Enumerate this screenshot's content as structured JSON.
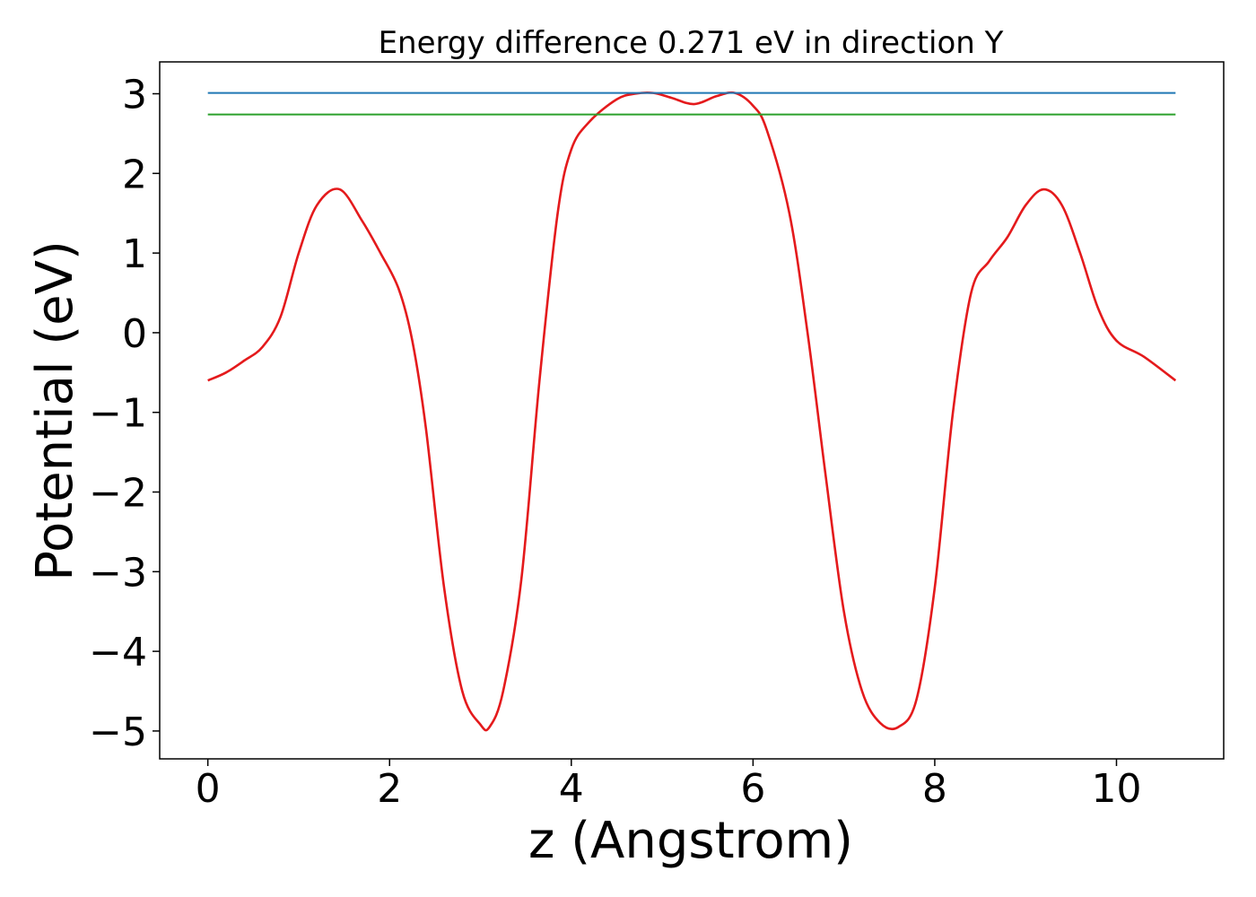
{
  "chart_data": {
    "type": "line",
    "title": "Energy difference 0.271 eV in direction Y",
    "xlabel": "z (Angstrom)",
    "ylabel": "Potential (eV)",
    "xlim": [
      -0.53,
      11.18
    ],
    "ylim": [
      -5.35,
      3.4
    ],
    "xticks": [
      0,
      2,
      4,
      6,
      8,
      10
    ],
    "yticks": [
      -5,
      -4,
      -3,
      -2,
      -1,
      0,
      1,
      2,
      3
    ],
    "xtick_labels": [
      "0",
      "2",
      "4",
      "6",
      "8",
      "10"
    ],
    "ytick_labels": [
      "−5",
      "−4",
      "−3",
      "−2",
      "−1",
      "0",
      "1",
      "2",
      "3"
    ],
    "grid": false,
    "series": [
      {
        "color": "#e41a1c",
        "x": [
          0,
          0.2,
          0.4,
          0.6,
          0.8,
          1.0,
          1.2,
          1.45,
          1.7,
          1.9,
          2.1,
          2.25,
          2.4,
          2.6,
          2.8,
          3.0,
          3.1,
          3.25,
          3.45,
          3.65,
          3.85,
          4.0,
          4.2,
          4.5,
          4.7,
          4.9,
          5.1,
          5.35,
          5.6,
          5.8,
          6.0,
          6.15,
          6.4,
          6.6,
          6.8,
          7.0,
          7.2,
          7.4,
          7.6,
          7.8,
          8.0,
          8.2,
          8.4,
          8.6,
          8.8,
          9.0,
          9.2,
          9.4,
          9.6,
          9.8,
          10.0,
          10.3,
          10.65
        ],
        "y": [
          -0.6,
          -0.5,
          -0.35,
          -0.18,
          0.2,
          1.0,
          1.6,
          1.8,
          1.4,
          1.0,
          0.55,
          -0.1,
          -1.2,
          -3.2,
          -4.5,
          -4.92,
          -4.95,
          -4.5,
          -3.1,
          -0.6,
          1.5,
          2.3,
          2.65,
          2.93,
          3.0,
          3.01,
          2.95,
          2.87,
          2.97,
          3.01,
          2.85,
          2.55,
          1.5,
          0.0,
          -1.8,
          -3.5,
          -4.5,
          -4.9,
          -4.95,
          -4.6,
          -3.2,
          -1.0,
          0.5,
          0.9,
          1.2,
          1.6,
          1.8,
          1.6,
          1.0,
          0.3,
          -0.1,
          -0.3,
          -0.6
        ]
      },
      {
        "color": "#1f77b4",
        "x": [
          0,
          10.65
        ],
        "y": [
          3.01,
          3.01
        ]
      },
      {
        "color": "#2ca02c",
        "x": [
          0,
          10.65
        ],
        "y": [
          2.74,
          2.74
        ]
      }
    ]
  }
}
